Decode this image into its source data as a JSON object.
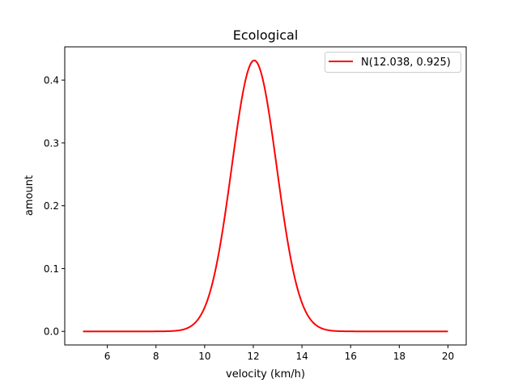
{
  "chart_data": {
    "type": "line",
    "title": "Ecological",
    "xlabel": "velocity (km/h)",
    "ylabel": "amount",
    "xlim": [
      4.25,
      20.75
    ],
    "ylim": [
      -0.0216,
      0.4529
    ],
    "xticks": [
      6,
      8,
      10,
      12,
      14,
      16,
      18,
      20
    ],
    "xtick_labels": [
      "6",
      "8",
      "10",
      "12",
      "14",
      "16",
      "18",
      "20"
    ],
    "yticks": [
      0.0,
      0.1,
      0.2,
      0.3,
      0.4
    ],
    "ytick_labels": [
      "0.0",
      "0.1",
      "0.2",
      "0.3",
      "0.4"
    ],
    "grid": false,
    "legend_position": "top-right",
    "series": [
      {
        "name": "N(12.038, 0.925)",
        "color": "#ff0000",
        "distribution": "normal",
        "mean": 12.038,
        "std": 0.925,
        "x_range": [
          5,
          20
        ]
      }
    ]
  }
}
